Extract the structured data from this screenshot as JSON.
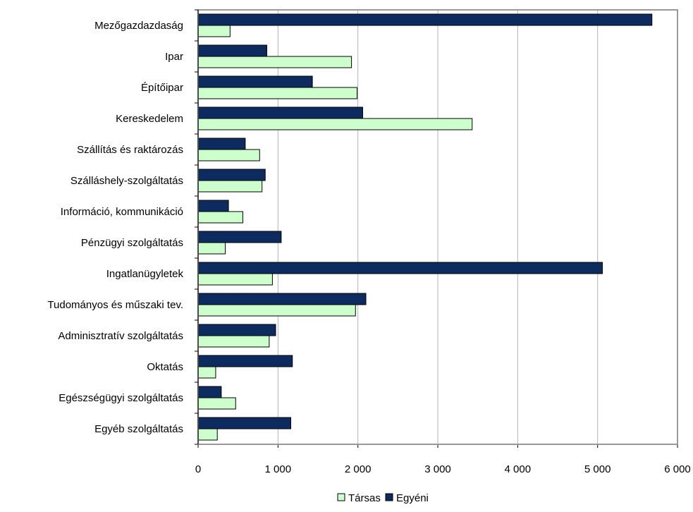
{
  "chart_data": {
    "type": "bar",
    "orientation": "horizontal",
    "title": "",
    "xlabel": "",
    "ylabel": "",
    "xlim": [
      0,
      6000
    ],
    "x_ticks": [
      0,
      1000,
      2000,
      3000,
      4000,
      5000,
      6000
    ],
    "x_tick_labels": [
      "0",
      "1 000",
      "2 000",
      "3 000",
      "4 000",
      "5 000",
      "6 000"
    ],
    "grid": "vertical gridlines",
    "legend_position": "bottom",
    "categories": [
      "Mezőgazdazdaság",
      "Ipar",
      "Építőipar",
      "Kereskedelem",
      "Szállítás és raktározás",
      "Szálláshely-szolgáltatás",
      "Információ, kommunikáció",
      "Pénzügyi szolgáltatás",
      "Ingatlanügyletek",
      "Tudományos és műszaki tev.",
      "Adminisztratív szolgáltatás",
      "Oktatás",
      "Egészségügyi szolgáltatás",
      "Egyéb szolgáltatás"
    ],
    "series": [
      {
        "name": "Egyéni",
        "color": "#0d2b5e",
        "values": [
          5680,
          860,
          1430,
          2060,
          590,
          840,
          380,
          1040,
          5060,
          2100,
          970,
          1180,
          290,
          1160
        ]
      },
      {
        "name": "Társas",
        "color": "#ccffcc",
        "values": [
          400,
          1920,
          1990,
          3430,
          770,
          800,
          560,
          340,
          930,
          1970,
          890,
          220,
          470,
          240
        ]
      }
    ]
  }
}
